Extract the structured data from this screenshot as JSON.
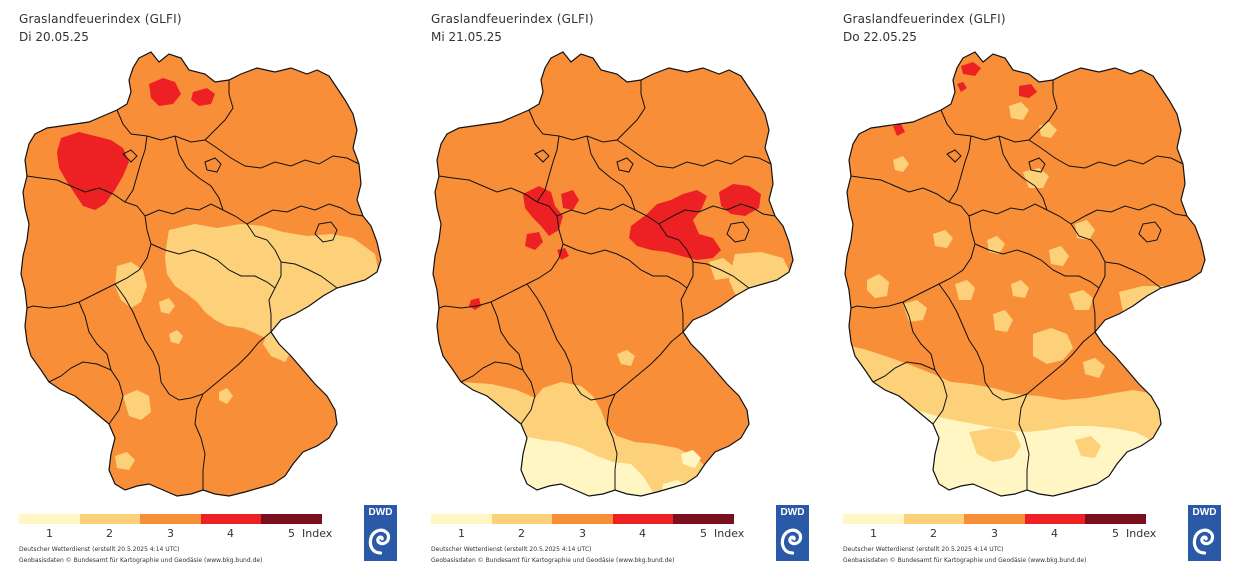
{
  "colors": {
    "class1": "#fff6c4",
    "class2": "#fdd17a",
    "class3": "#f88f38",
    "class4": "#ed2024",
    "class5": "#7a0f1e",
    "border": "#111111",
    "logo": "#2a59a8"
  },
  "panels": [
    {
      "title": "Graslandfeuerindex (GLFI)",
      "date": "Di 20.05.25",
      "legend": {
        "labels": [
          "1",
          "2",
          "3",
          "4",
          "5"
        ],
        "index_label": "Index"
      },
      "credit_line1": "Deutscher Wetterdienst (erstellt 20.5.2025 4:14 UTC)",
      "credit_line2": "Geobasisdaten © Bundesamt für Kartographie und Geodäsie (www.bkg.bund.de)",
      "logo_text": "DWD"
    },
    {
      "title": "Graslandfeuerindex (GLFI)",
      "date": "Mi 21.05.25",
      "legend": {
        "labels": [
          "1",
          "2",
          "3",
          "4",
          "5"
        ],
        "index_label": "Index"
      },
      "credit_line1": "Deutscher Wetterdienst (erstellt 20.5.2025 4:14 UTC)",
      "credit_line2": "Geobasisdaten © Bundesamt für Kartographie und Geodäsie (www.bkg.bund.de)",
      "logo_text": "DWD"
    },
    {
      "title": "Graslandfeuerindex (GLFI)",
      "date": "Do 22.05.25",
      "legend": {
        "labels": [
          "1",
          "2",
          "3",
          "4",
          "5"
        ],
        "index_label": "Index"
      },
      "credit_line1": "Deutscher Wetterdienst (erstellt 20.5.2025 4:14 UTC)",
      "credit_line2": "Geobasisdaten © Bundesamt für Kartographie und Geodäsie (www.bkg.bund.de)",
      "logo_text": "DWD"
    }
  ]
}
